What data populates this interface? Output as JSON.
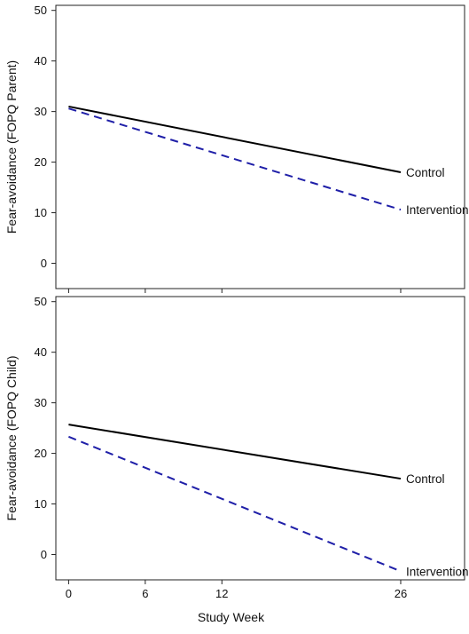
{
  "chart_data": [
    {
      "type": "line",
      "ylabel": "Fear-avoidance (FOPQ Parent)",
      "xlabel": "",
      "x_ticks": [
        0,
        6,
        12,
        26
      ],
      "show_x_tick_labels": false,
      "xlim": [
        -1,
        31
      ],
      "ylim": [
        -5,
        51
      ],
      "y_ticks": [
        0,
        10,
        20,
        30,
        40,
        50
      ],
      "grid": false,
      "series": [
        {
          "name": "Control",
          "x": [
            0,
            26
          ],
          "y": [
            31.0,
            18.0
          ],
          "color": "#000000",
          "style": "solid"
        },
        {
          "name": "Intervention",
          "x": [
            0,
            26
          ],
          "y": [
            30.6,
            10.6
          ],
          "color": "#1f1fa8",
          "style": "dashed"
        }
      ]
    },
    {
      "type": "line",
      "ylabel": "Fear-avoidance (FOPQ Child)",
      "xlabel": "Study Week",
      "x_ticks": [
        0,
        6,
        12,
        26
      ],
      "show_x_tick_labels": true,
      "xlim": [
        -1,
        31
      ],
      "ylim": [
        -5,
        51
      ],
      "y_ticks": [
        0,
        10,
        20,
        30,
        40,
        50
      ],
      "grid": false,
      "series": [
        {
          "name": "Control",
          "x": [
            0,
            26
          ],
          "y": [
            25.7,
            15.0
          ],
          "color": "#000000",
          "style": "solid"
        },
        {
          "name": "Intervention",
          "x": [
            0,
            26
          ],
          "y": [
            23.3,
            -3.3
          ],
          "color": "#1f1fa8",
          "style": "dashed"
        }
      ]
    }
  ]
}
